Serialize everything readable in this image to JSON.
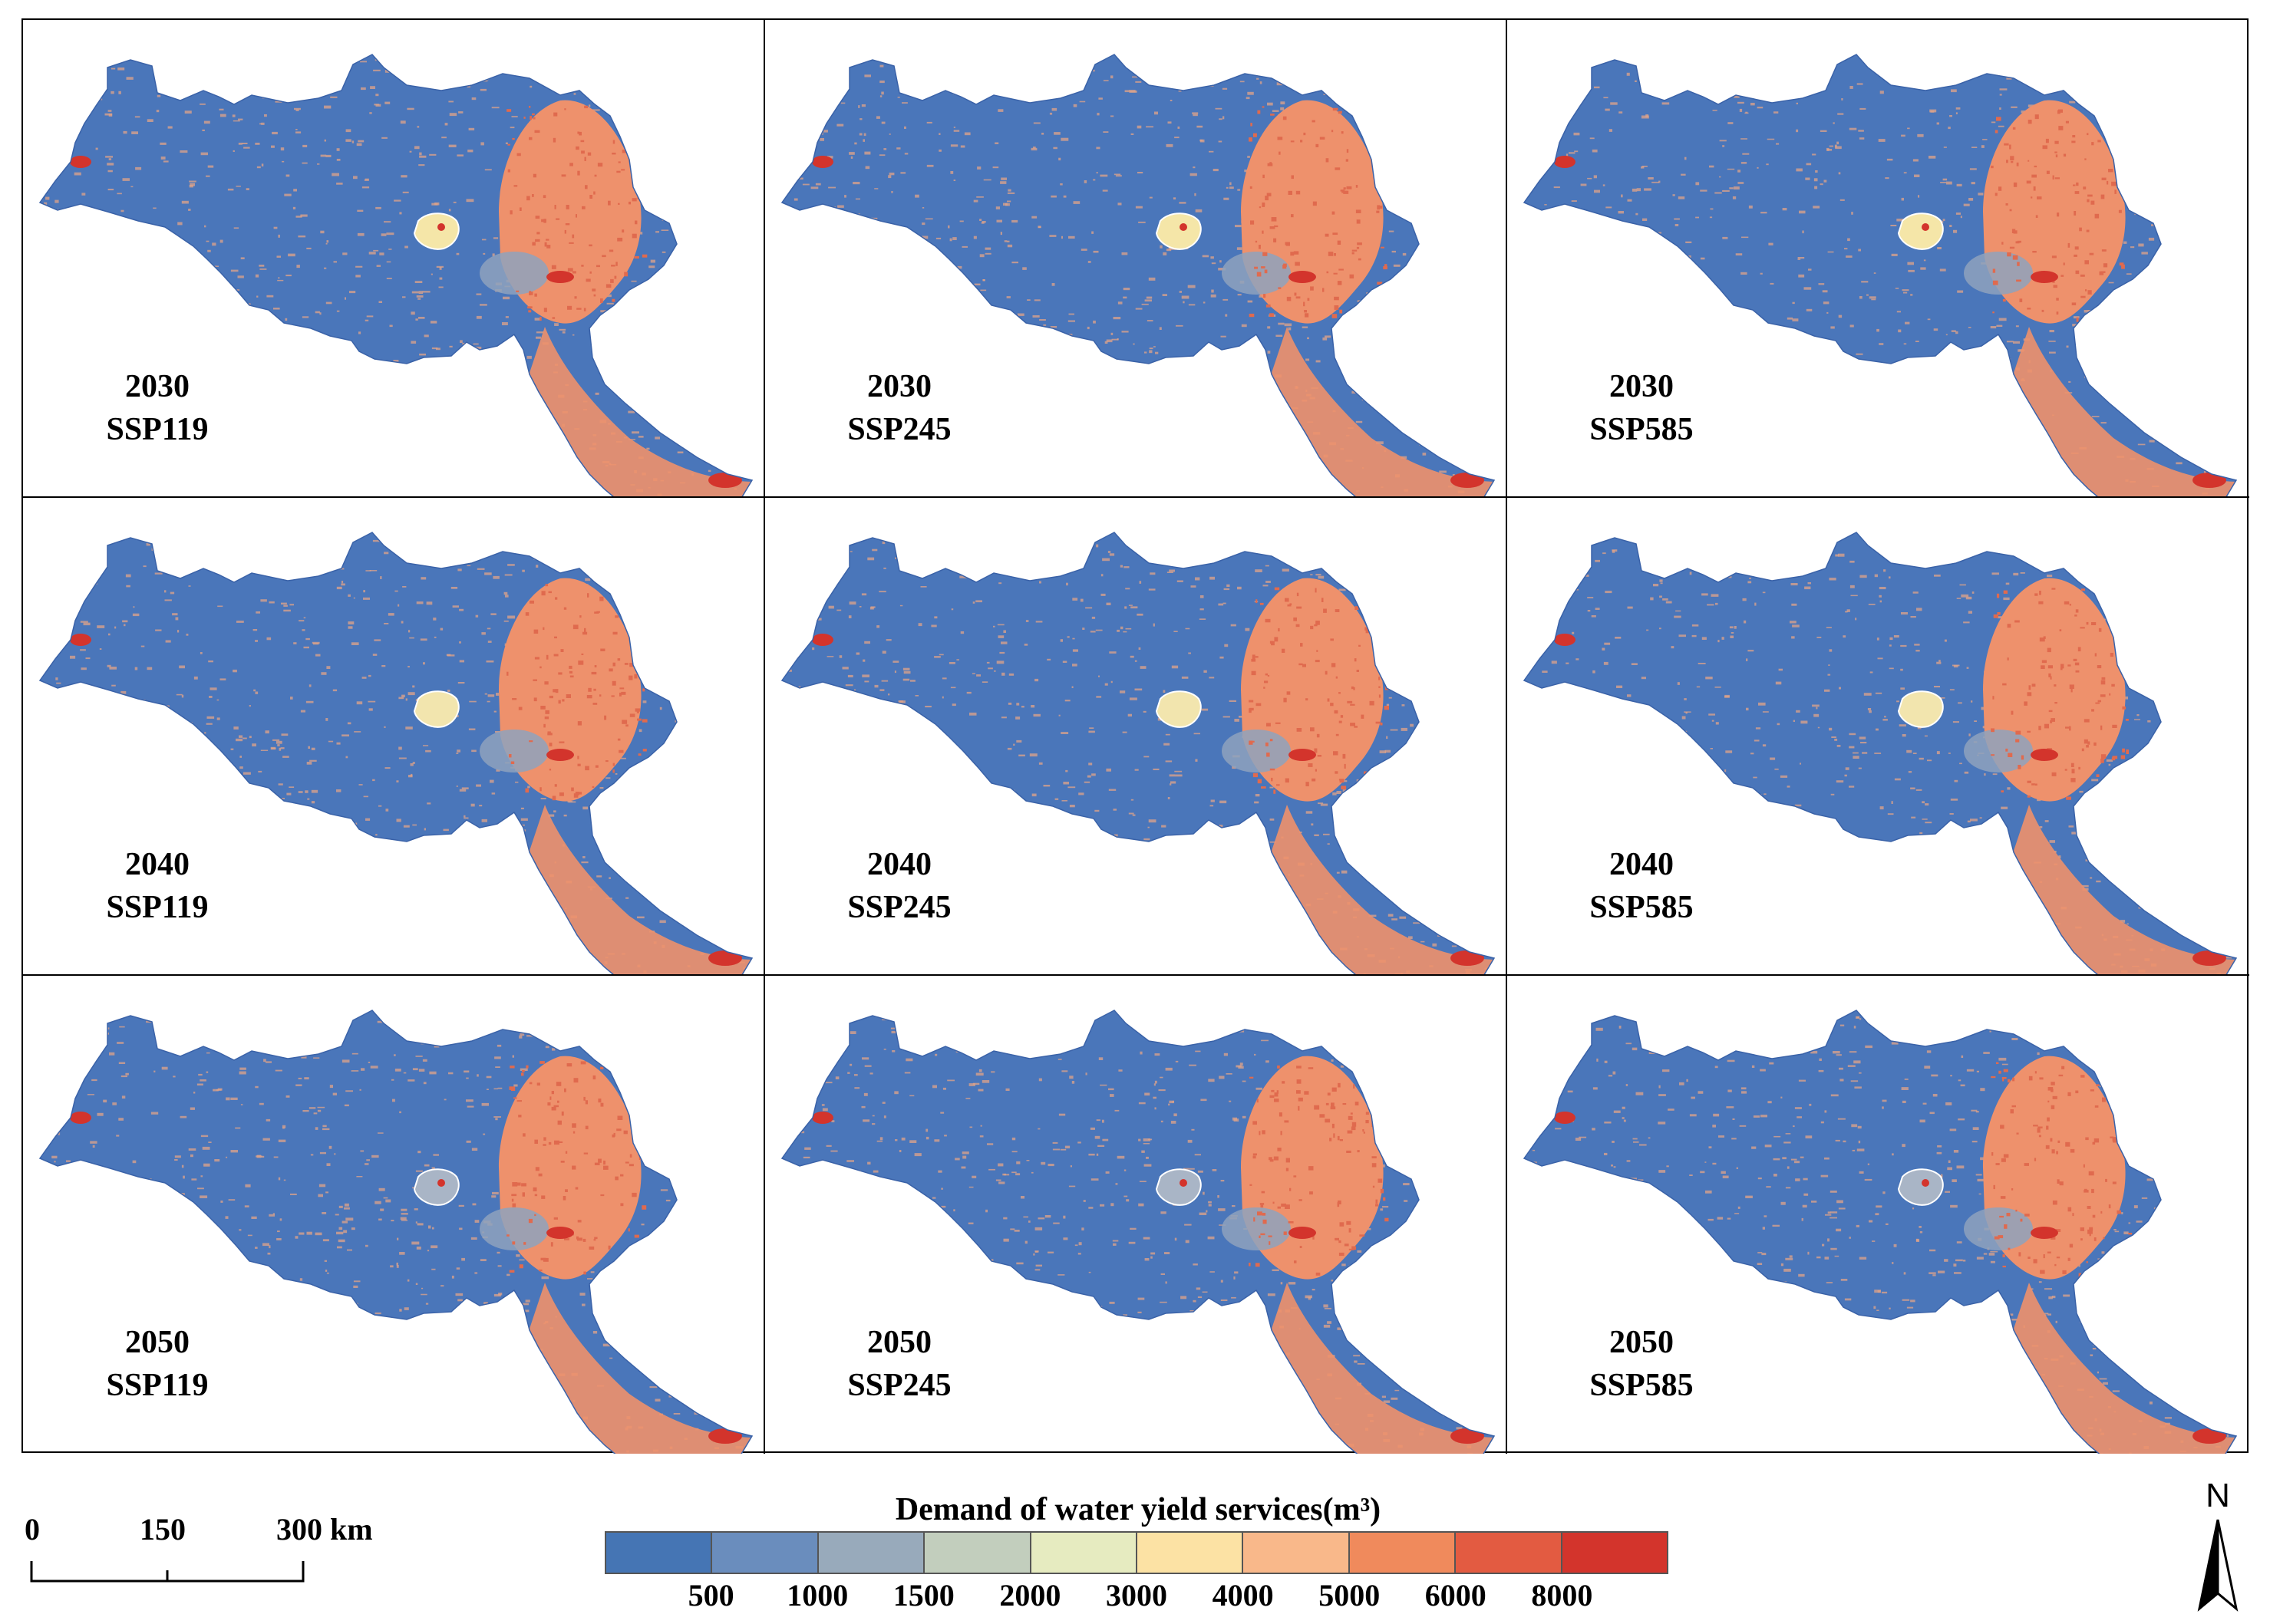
{
  "panels": [
    {
      "year": "2030",
      "scenario": "SSP119",
      "center_fill": "#F5E6A8",
      "spot": true
    },
    {
      "year": "2030",
      "scenario": "SSP245",
      "center_fill": "#F5E6A8",
      "spot": true
    },
    {
      "year": "2030",
      "scenario": "SSP585",
      "center_fill": "#F5E6A8",
      "spot": true
    },
    {
      "year": "2040",
      "scenario": "SSP119",
      "center_fill": "#F2E5AE",
      "spot": false
    },
    {
      "year": "2040",
      "scenario": "SSP245",
      "center_fill": "#F2E5AE",
      "spot": false
    },
    {
      "year": "2040",
      "scenario": "SSP585",
      "center_fill": "#F2E5AE",
      "spot": false
    },
    {
      "year": "2050",
      "scenario": "SSP119",
      "center_fill": "#A9B5C6",
      "spot": true
    },
    {
      "year": "2050",
      "scenario": "SSP245",
      "center_fill": "#A9B5C6",
      "spot": true
    },
    {
      "year": "2050",
      "scenario": "SSP585",
      "center_fill": "#A9B5C6",
      "spot": true
    }
  ],
  "scale_bar": {
    "labels": [
      "0",
      "150",
      "300 km"
    ]
  },
  "legend": {
    "title": "Demand of water yield services(m³)",
    "tick_labels": [
      "500",
      "1000",
      "1500",
      "2000",
      "3000",
      "4000",
      "5000",
      "6000",
      "8000"
    ],
    "colors": [
      "#4575B4",
      "#6A8DBD",
      "#98AABB",
      "#C2CEBD",
      "#E6EBC0",
      "#FCE2A4",
      "#F9B88A",
      "#F08A5C",
      "#E35B41",
      "#D3342C"
    ]
  },
  "north_arrow": {
    "label": "N"
  },
  "map_colors": {
    "base": "#4A76BA",
    "speckle": "#E2A488",
    "east": "#EE916C",
    "east_dark": "#E06A4E",
    "hot": "#D3342C",
    "grayblue": "#8EA2BD"
  }
}
